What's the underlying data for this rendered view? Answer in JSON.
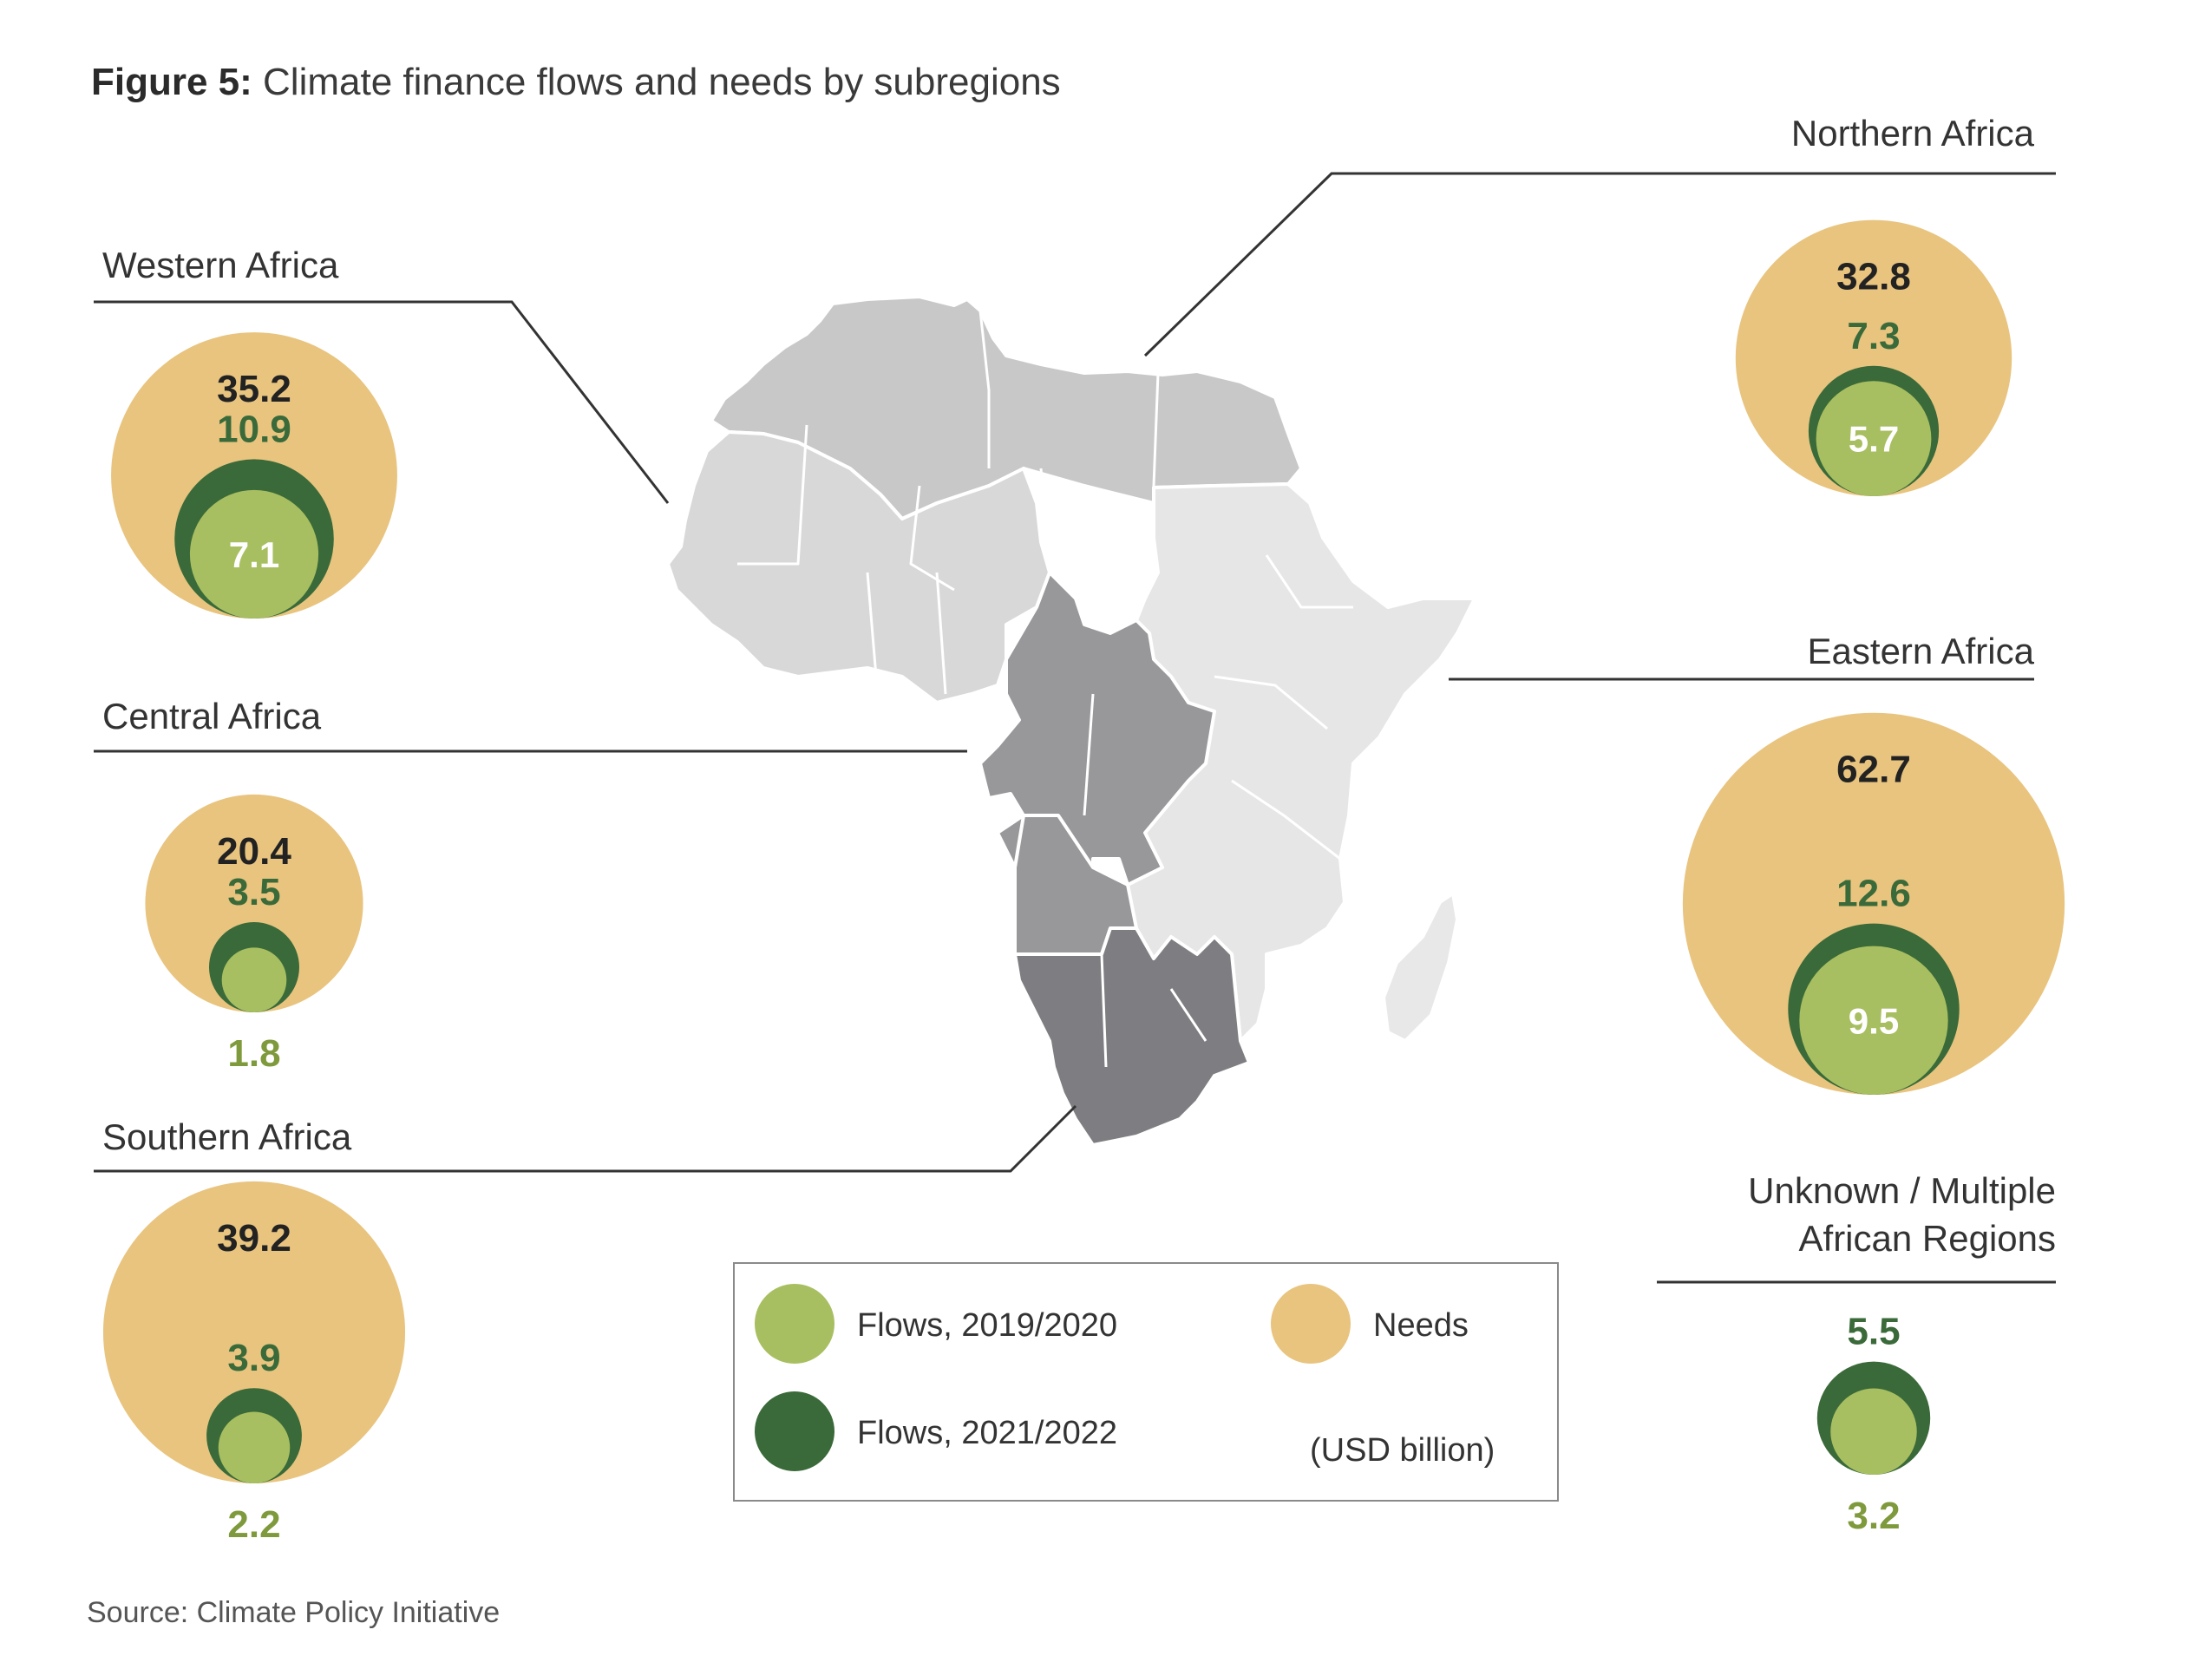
{
  "figure": {
    "label": "Figure 5:",
    "caption": "Climate finance flows and needs by subregions",
    "source": "Source: Climate Policy Initiative"
  },
  "legend": {
    "flows_2019_label": "Flows, 2019/2020",
    "flows_2021_label": "Flows, 2021/2022",
    "needs_label": "Needs",
    "unit_label": "(USD billion)"
  },
  "colors": {
    "needs": "#e8c47f",
    "flows_2021": "#3a6a39",
    "flows_2019": "#a8bf61",
    "flows_2021_text": "#3a6a39",
    "flows_2019_text": "#7e9a3c",
    "needs_text": "#222222",
    "map_north": "#c8c8c9",
    "map_west": "#d8d8d9",
    "map_east": "#e6e6e7",
    "map_central": "#98989b",
    "map_south": "#7e7e82",
    "map_madagascar": "#e8e8e9",
    "leader_line": "#333333"
  },
  "chart_data": {
    "type": "bubble",
    "unit": "USD billion",
    "series": [
      {
        "name": "Needs"
      },
      {
        "name": "Flows, 2021/2022"
      },
      {
        "name": "Flows, 2019/2020"
      }
    ],
    "regions": [
      {
        "name": "Western Africa",
        "needs": 35.2,
        "flows_2021_2022": 10.9,
        "flows_2019_2020": 7.1
      },
      {
        "name": "Central Africa",
        "needs": 20.4,
        "flows_2021_2022": 3.5,
        "flows_2019_2020": 1.8
      },
      {
        "name": "Southern Africa",
        "needs": 39.2,
        "flows_2021_2022": 3.9,
        "flows_2019_2020": 2.2
      },
      {
        "name": "Northern Africa",
        "needs": 32.8,
        "flows_2021_2022": 7.3,
        "flows_2019_2020": 5.7
      },
      {
        "name": "Eastern Africa",
        "needs": 62.7,
        "flows_2021_2022": 12.6,
        "flows_2019_2020": 9.5
      },
      {
        "name_line1": "Unknown / Multiple",
        "name_line2": "African Regions",
        "needs": null,
        "flows_2021_2022": 5.5,
        "flows_2019_2020": 3.2
      }
    ]
  }
}
